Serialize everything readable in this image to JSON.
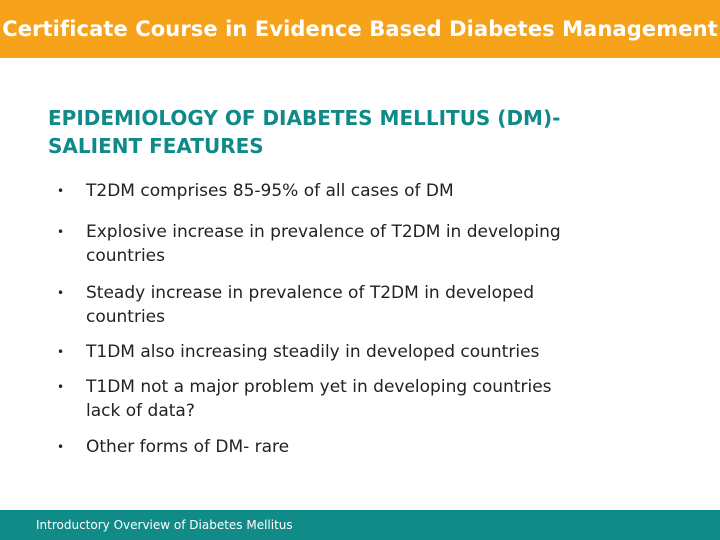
{
  "header": {
    "course_title": "Certificate Course in Evidence Based Diabetes Management"
  },
  "slide": {
    "title_line1": "EPIDEMIOLOGY OF DIABETES MELLITUS (DM)-",
    "title_line2": "SALIENT FEATURES",
    "bullet_symbol": "•",
    "bullets": [
      "T2DM comprises 85-95% of all cases of DM",
      "Explosive increase in prevalence of T2DM in developing\ncountries",
      "Steady increase in prevalence of T2DM in developed\ncountries",
      "T1DM also increasing steadily in developed countries",
      "T1DM not a major problem yet in developing countries\nlack of data?",
      "Other forms of DM- rare"
    ]
  },
  "footer": {
    "label": "Introductory Overview of Diabetes Mellitus"
  },
  "colors": {
    "banner": "#f7a21b",
    "title": "#0f8a88",
    "footer": "#118b88"
  }
}
